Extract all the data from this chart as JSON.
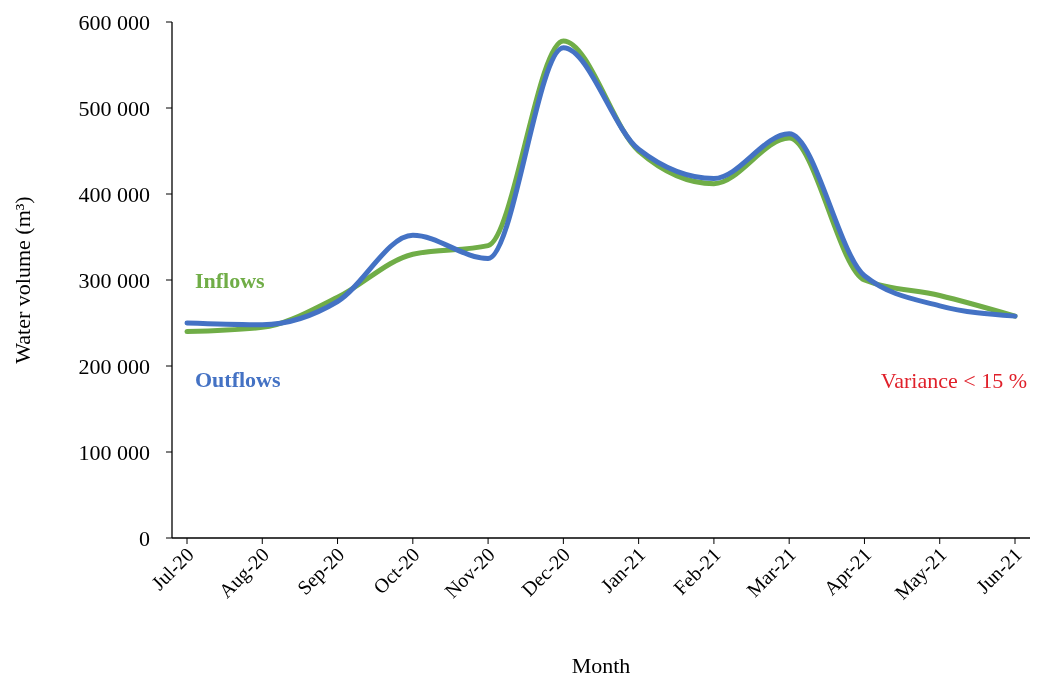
{
  "chart_data": {
    "type": "line",
    "xlabel": "Month",
    "ylabel": "Water volume (m³)",
    "categories": [
      "Jul-20",
      "Aug-20",
      "Sep-20",
      "Oct-20",
      "Nov-20",
      "Dec-20",
      "Jan-21",
      "Feb-21",
      "Mar-21",
      "Apr-21",
      "May-21",
      "Jun-21"
    ],
    "series": [
      {
        "name": "Inflows",
        "color": "#70ad47",
        "values": [
          240000,
          245000,
          280000,
          330000,
          340000,
          578000,
          450000,
          412000,
          465000,
          300000,
          282000,
          258000
        ]
      },
      {
        "name": "Outflows",
        "color": "#4472c4",
        "values": [
          250000,
          248000,
          275000,
          352000,
          325000,
          570000,
          452000,
          418000,
          470000,
          305000,
          270000,
          258000
        ]
      }
    ],
    "ylim": [
      0,
      600000
    ],
    "yticks": [
      0,
      {
        "value": 100000,
        "label": "100 000"
      },
      {
        "value": 200000,
        "label": "200 000"
      },
      {
        "value": 300000,
        "label": "300 000"
      },
      {
        "value": 400000,
        "label": "400 000"
      },
      {
        "value": 500000,
        "label": "500 000"
      },
      {
        "value": 600000,
        "label": "600 000"
      }
    ],
    "annotations": [
      "Variance < 15 %"
    ]
  }
}
